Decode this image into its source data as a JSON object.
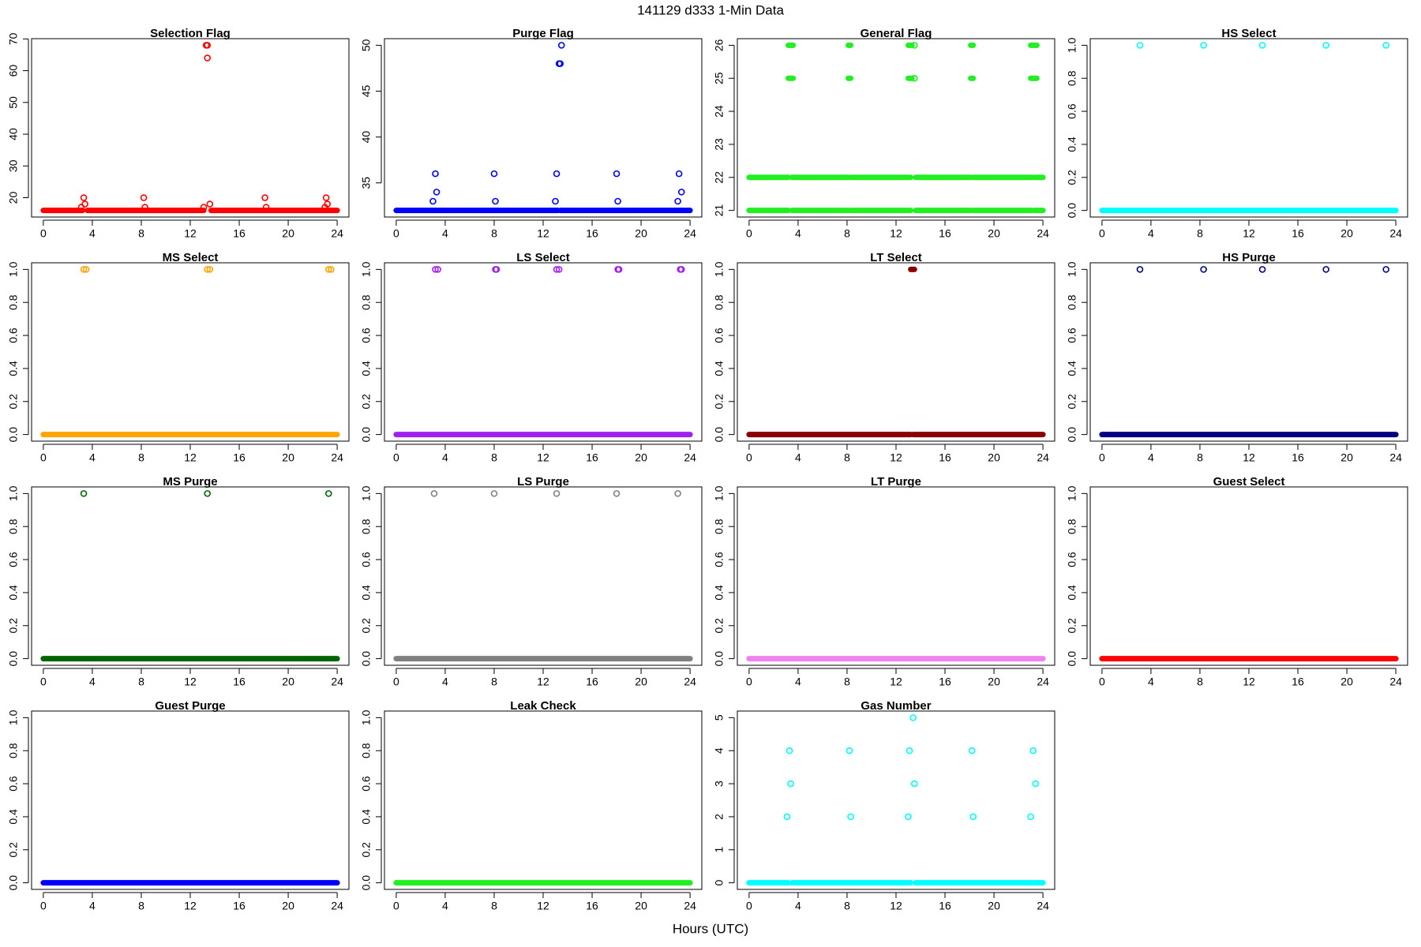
{
  "title": "141129   d333   1-Min Data",
  "xlabel": "Hours (UTC)",
  "chart_data": [
    {
      "type": "scatter",
      "title": "Selection Flag",
      "color": "#ff0000",
      "xlim": [
        -0.96,
        24.96
      ],
      "xticks": [
        0,
        4,
        8,
        12,
        16,
        20,
        24
      ],
      "ylim": [
        13.92,
        70.08
      ],
      "yticks": [
        20,
        30,
        40,
        50,
        60,
        70
      ],
      "bands": [
        {
          "x": [
            0,
            3.2,
            null,
            3.6,
            13.1,
            null,
            13.7,
            24
          ],
          "values": [
            16,
            16,
            null,
            16,
            16,
            null,
            16,
            16
          ]
        }
      ],
      "x": [
        3.1,
        3.3,
        3.4,
        8.2,
        8.3,
        13.1,
        13.3,
        13.4,
        13.4,
        13.6,
        18.1,
        18.2,
        23.0,
        23.1,
        23.2
      ],
      "values": [
        17,
        20,
        18,
        20,
        17,
        17,
        68,
        68,
        64,
        18,
        20,
        17,
        17,
        20,
        18
      ]
    },
    {
      "type": "scatter",
      "title": "Purge Flag",
      "color": "#0000ff",
      "xlim": [
        -0.96,
        24.96
      ],
      "xticks": [
        0,
        4,
        8,
        12,
        16,
        20,
        24
      ],
      "ylim": [
        31.28,
        50.72
      ],
      "yticks": [
        35,
        40,
        45,
        50
      ],
      "bands": [
        {
          "x": [
            0,
            13.2,
            null,
            13.4,
            24
          ],
          "values": [
            32,
            32,
            null,
            32,
            32
          ]
        }
      ],
      "x": [
        3.0,
        3.2,
        3.3,
        8.0,
        8.1,
        13.0,
        13.1,
        13.3,
        13.4,
        13.5,
        18.0,
        18.1,
        23.0,
        23.1,
        23.3
      ],
      "values": [
        33,
        36,
        34,
        36,
        33,
        33,
        36,
        48,
        48,
        50,
        36,
        33,
        33,
        36,
        34
      ]
    },
    {
      "type": "scatter",
      "title": "General Flag",
      "color": "#22ee22",
      "xlim": [
        -0.96,
        24.96
      ],
      "xticks": [
        0,
        4,
        8,
        12,
        16,
        20,
        24
      ],
      "ylim": [
        20.8,
        26.2
      ],
      "yticks": [
        21,
        22,
        23,
        24,
        25,
        26
      ],
      "bands": [
        {
          "x": [
            0,
            3.2,
            null,
            3.5,
            8.1,
            null,
            8.3,
            13.2,
            null,
            13.6,
            18.1,
            null,
            18.3,
            23.1,
            null,
            23.3,
            24
          ],
          "values": [
            22,
            22,
            null,
            22,
            22,
            null,
            22,
            22,
            null,
            22,
            22,
            null,
            22,
            22,
            null,
            22,
            22
          ]
        },
        {
          "x": [
            0,
            3.2,
            null,
            3.5,
            8.1,
            null,
            8.3,
            13.2,
            null,
            13.6,
            18.1,
            null,
            18.3,
            23.1,
            null,
            23.3,
            24
          ],
          "values": [
            21,
            21,
            null,
            21,
            21,
            null,
            21,
            21,
            null,
            21,
            21,
            null,
            21,
            21,
            null,
            21,
            21
          ]
        },
        {
          "x": [
            3.2,
            3.6,
            null,
            8.1,
            8.3,
            null,
            13.0,
            13.3,
            null,
            18.1,
            18.3,
            null,
            23.0,
            23.5
          ],
          "values": [
            25,
            25,
            null,
            25,
            25,
            null,
            25,
            25,
            null,
            25,
            25,
            null,
            25,
            25
          ]
        },
        {
          "x": [
            3.2,
            3.6,
            null,
            8.1,
            8.3,
            null,
            13.0,
            13.3,
            null,
            18.1,
            18.3,
            null,
            23.0,
            23.5
          ],
          "values": [
            26,
            26,
            null,
            26,
            26,
            null,
            26,
            26,
            null,
            26,
            26,
            null,
            26,
            26
          ]
        }
      ],
      "x": [
        13.5,
        13.5
      ],
      "values": [
        25,
        26
      ]
    },
    {
      "type": "scatter",
      "title": "HS Select",
      "color": "#00ffff",
      "xlim": [
        -0.96,
        24.96
      ],
      "xticks": [
        0,
        4,
        8,
        12,
        16,
        20,
        24
      ],
      "ylim": [
        -0.04,
        1.04
      ],
      "yticks": [
        {
          "value": 0,
          "label": "0.0"
        },
        {
          "value": 0.2,
          "label": "0.2"
        },
        {
          "value": 0.4,
          "label": "0.4"
        },
        {
          "value": 0.6,
          "label": "0.6"
        },
        {
          "value": 0.8,
          "label": "0.8"
        },
        {
          "value": 1,
          "label": "1.0"
        }
      ],
      "bands": [
        {
          "x": [
            0,
            24
          ],
          "values": [
            0,
            0
          ]
        }
      ],
      "x": [
        3.1,
        8.3,
        13.1,
        18.3,
        23.2
      ],
      "values": [
        1,
        1,
        1,
        1,
        1
      ]
    },
    {
      "type": "scatter",
      "title": "MS Select",
      "color": "#ffa500",
      "xlim": [
        -0.96,
        24.96
      ],
      "xticks": [
        0,
        4,
        8,
        12,
        16,
        20,
        24
      ],
      "ylim": [
        -0.04,
        1.04
      ],
      "yticks": [
        {
          "value": 0,
          "label": "0.0"
        },
        {
          "value": 0.2,
          "label": "0.2"
        },
        {
          "value": 0.4,
          "label": "0.4"
        },
        {
          "value": 0.6,
          "label": "0.6"
        },
        {
          "value": 0.8,
          "label": "0.8"
        },
        {
          "value": 1,
          "label": "1.0"
        }
      ],
      "bands": [
        {
          "x": [
            0,
            24
          ],
          "values": [
            0,
            0
          ]
        }
      ],
      "x": [
        3.3,
        3.5,
        13.4,
        13.6,
        23.3,
        23.5
      ],
      "values": [
        1,
        1,
        1,
        1,
        1,
        1
      ]
    },
    {
      "type": "scatter",
      "title": "LS Select",
      "color": "#a020f0",
      "xlim": [
        -0.96,
        24.96
      ],
      "xticks": [
        0,
        4,
        8,
        12,
        16,
        20,
        24
      ],
      "ylim": [
        -0.04,
        1.04
      ],
      "yticks": [
        {
          "value": 0,
          "label": "0.0"
        },
        {
          "value": 0.2,
          "label": "0.2"
        },
        {
          "value": 0.4,
          "label": "0.4"
        },
        {
          "value": 0.6,
          "label": "0.6"
        },
        {
          "value": 0.8,
          "label": "0.8"
        },
        {
          "value": 1,
          "label": "1.0"
        }
      ],
      "bands": [
        {
          "x": [
            0,
            24
          ],
          "values": [
            0,
            0
          ]
        }
      ],
      "x": [
        3.2,
        3.4,
        8.1,
        8.2,
        13.1,
        13.3,
        18.1,
        18.2,
        23.2,
        23.3
      ],
      "values": [
        1,
        1,
        1,
        1,
        1,
        1,
        1,
        1,
        1,
        1
      ]
    },
    {
      "type": "scatter",
      "title": "LT Select",
      "color": "#8b0000",
      "xlim": [
        -0.96,
        24.96
      ],
      "xticks": [
        0,
        4,
        8,
        12,
        16,
        20,
        24
      ],
      "ylim": [
        -0.04,
        1.04
      ],
      "yticks": [
        {
          "value": 0,
          "label": "0.0"
        },
        {
          "value": 0.2,
          "label": "0.2"
        },
        {
          "value": 0.4,
          "label": "0.4"
        },
        {
          "value": 0.6,
          "label": "0.6"
        },
        {
          "value": 0.8,
          "label": "0.8"
        },
        {
          "value": 1,
          "label": "1.0"
        }
      ],
      "bands": [
        {
          "x": [
            0,
            13.2,
            null,
            13.4,
            24
          ],
          "values": [
            0,
            0,
            null,
            0,
            0
          ]
        },
        {
          "x": [
            13.2,
            13.5
          ],
          "values": [
            1,
            1
          ]
        }
      ]
    },
    {
      "type": "scatter",
      "title": "HS Purge",
      "color": "#000080",
      "xlim": [
        -0.96,
        24.96
      ],
      "xticks": [
        0,
        4,
        8,
        12,
        16,
        20,
        24
      ],
      "ylim": [
        -0.04,
        1.04
      ],
      "yticks": [
        {
          "value": 0,
          "label": "0.0"
        },
        {
          "value": 0.2,
          "label": "0.2"
        },
        {
          "value": 0.4,
          "label": "0.4"
        },
        {
          "value": 0.6,
          "label": "0.6"
        },
        {
          "value": 0.8,
          "label": "0.8"
        },
        {
          "value": 1,
          "label": "1.0"
        }
      ],
      "bands": [
        {
          "x": [
            0,
            24
          ],
          "values": [
            0,
            0
          ]
        }
      ],
      "x": [
        3.1,
        8.3,
        13.1,
        18.3,
        23.2
      ],
      "values": [
        1,
        1,
        1,
        1,
        1
      ]
    },
    {
      "type": "scatter",
      "title": "MS Purge",
      "color": "#006400",
      "xlim": [
        -0.96,
        24.96
      ],
      "xticks": [
        0,
        4,
        8,
        12,
        16,
        20,
        24
      ],
      "ylim": [
        -0.04,
        1.04
      ],
      "yticks": [
        {
          "value": 0,
          "label": "0.0"
        },
        {
          "value": 0.2,
          "label": "0.2"
        },
        {
          "value": 0.4,
          "label": "0.4"
        },
        {
          "value": 0.6,
          "label": "0.6"
        },
        {
          "value": 0.8,
          "label": "0.8"
        },
        {
          "value": 1,
          "label": "1.0"
        }
      ],
      "bands": [
        {
          "x": [
            0,
            24
          ],
          "values": [
            0,
            0
          ]
        }
      ],
      "x": [
        3.3,
        13.4,
        23.3
      ],
      "values": [
        1,
        1,
        1
      ]
    },
    {
      "type": "scatter",
      "title": "LS Purge",
      "color": "#808080",
      "xlim": [
        -0.96,
        24.96
      ],
      "xticks": [
        0,
        4,
        8,
        12,
        16,
        20,
        24
      ],
      "ylim": [
        -0.04,
        1.04
      ],
      "yticks": [
        {
          "value": 0,
          "label": "0.0"
        },
        {
          "value": 0.2,
          "label": "0.2"
        },
        {
          "value": 0.4,
          "label": "0.4"
        },
        {
          "value": 0.6,
          "label": "0.6"
        },
        {
          "value": 0.8,
          "label": "0.8"
        },
        {
          "value": 1,
          "label": "1.0"
        }
      ],
      "bands": [
        {
          "x": [
            0,
            24
          ],
          "values": [
            0,
            0
          ]
        }
      ],
      "x": [
        3.1,
        8.0,
        13.1,
        18.0,
        23.0
      ],
      "values": [
        1,
        1,
        1,
        1,
        1
      ]
    },
    {
      "type": "scatter",
      "title": "LT Purge",
      "color": "#ee82ee",
      "xlim": [
        -0.96,
        24.96
      ],
      "xticks": [
        0,
        4,
        8,
        12,
        16,
        20,
        24
      ],
      "ylim": [
        -0.04,
        1.04
      ],
      "yticks": [
        {
          "value": 0,
          "label": "0.0"
        },
        {
          "value": 0.2,
          "label": "0.2"
        },
        {
          "value": 0.4,
          "label": "0.4"
        },
        {
          "value": 0.6,
          "label": "0.6"
        },
        {
          "value": 0.8,
          "label": "0.8"
        },
        {
          "value": 1,
          "label": "1.0"
        }
      ],
      "bands": [
        {
          "x": [
            0,
            24
          ],
          "values": [
            0,
            0
          ]
        }
      ]
    },
    {
      "type": "scatter",
      "title": "Guest Select",
      "color": "#ff0000",
      "xlim": [
        -0.96,
        24.96
      ],
      "xticks": [
        0,
        4,
        8,
        12,
        16,
        20,
        24
      ],
      "ylim": [
        -0.04,
        1.04
      ],
      "yticks": [
        {
          "value": 0,
          "label": "0.0"
        },
        {
          "value": 0.2,
          "label": "0.2"
        },
        {
          "value": 0.4,
          "label": "0.4"
        },
        {
          "value": 0.6,
          "label": "0.6"
        },
        {
          "value": 0.8,
          "label": "0.8"
        },
        {
          "value": 1,
          "label": "1.0"
        }
      ],
      "bands": [
        {
          "x": [
            0,
            24
          ],
          "values": [
            0,
            0
          ]
        }
      ]
    },
    {
      "type": "scatter",
      "title": "Guest Purge",
      "color": "#0000ff",
      "xlim": [
        -0.96,
        24.96
      ],
      "xticks": [
        0,
        4,
        8,
        12,
        16,
        20,
        24
      ],
      "ylim": [
        -0.04,
        1.04
      ],
      "yticks": [
        {
          "value": 0,
          "label": "0.0"
        },
        {
          "value": 0.2,
          "label": "0.2"
        },
        {
          "value": 0.4,
          "label": "0.4"
        },
        {
          "value": 0.6,
          "label": "0.6"
        },
        {
          "value": 0.8,
          "label": "0.8"
        },
        {
          "value": 1,
          "label": "1.0"
        }
      ],
      "bands": [
        {
          "x": [
            0,
            24
          ],
          "values": [
            0,
            0
          ]
        }
      ]
    },
    {
      "type": "scatter",
      "title": "Leak Check",
      "color": "#22ee22",
      "xlim": [
        -0.96,
        24.96
      ],
      "xticks": [
        0,
        4,
        8,
        12,
        16,
        20,
        24
      ],
      "ylim": [
        -0.04,
        1.04
      ],
      "yticks": [
        {
          "value": 0,
          "label": "0.0"
        },
        {
          "value": 0.2,
          "label": "0.2"
        },
        {
          "value": 0.4,
          "label": "0.4"
        },
        {
          "value": 0.6,
          "label": "0.6"
        },
        {
          "value": 0.8,
          "label": "0.8"
        },
        {
          "value": 1,
          "label": "1.0"
        }
      ],
      "bands": [
        {
          "x": [
            0,
            24
          ],
          "values": [
            0,
            0
          ]
        }
      ]
    },
    {
      "type": "scatter",
      "title": "Gas Number",
      "color": "#00ffff",
      "xlim": [
        -0.96,
        24.96
      ],
      "xticks": [
        0,
        4,
        8,
        12,
        16,
        20,
        24
      ],
      "ylim": [
        -0.2,
        5.2
      ],
      "yticks": [
        0,
        1,
        2,
        3,
        4,
        5
      ],
      "bands": [
        {
          "x": [
            0,
            3.2,
            null,
            3.5,
            13.2,
            null,
            13.6,
            23.1,
            null,
            23.3,
            24
          ],
          "values": [
            0,
            0,
            null,
            0,
            0,
            null,
            0,
            0,
            null,
            0,
            0
          ]
        }
      ],
      "x": [
        3.1,
        3.3,
        3.4,
        8.2,
        8.3,
        13.0,
        13.1,
        13.4,
        13.5,
        18.2,
        18.3,
        23.0,
        23.2,
        23.4
      ],
      "values": [
        2,
        4,
        3,
        4,
        2,
        2,
        4,
        5,
        3,
        4,
        2,
        2,
        4,
        3
      ]
    }
  ]
}
